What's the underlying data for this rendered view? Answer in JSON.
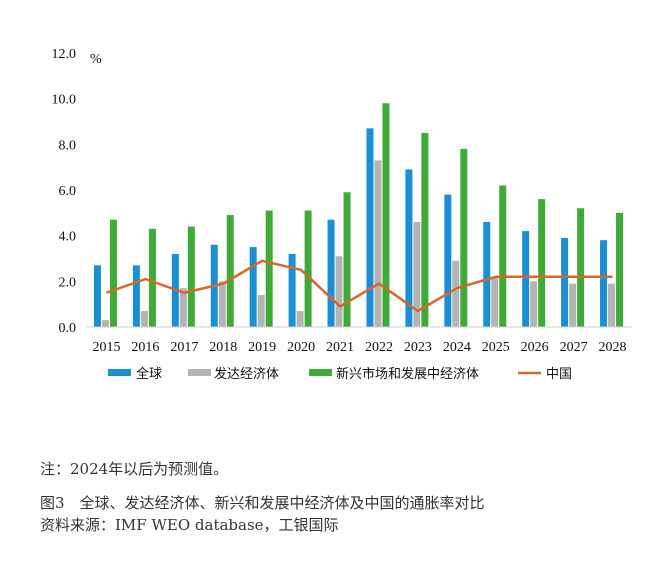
{
  "chart_data": {
    "type": "bar",
    "unit": "%",
    "categories": [
      "2015",
      "2016",
      "2017",
      "2018",
      "2019",
      "2020",
      "2021",
      "2022",
      "2023",
      "2024",
      "2025",
      "2026",
      "2027",
      "2028"
    ],
    "ylim": [
      0,
      12
    ],
    "yticks": [
      "0.0",
      "2.0",
      "4.0",
      "6.0",
      "8.0",
      "10.0",
      "12.0"
    ],
    "series": [
      {
        "name": "全球",
        "kind": "bar",
        "color": "#1a8fd6",
        "values": [
          2.7,
          2.7,
          3.2,
          3.6,
          3.5,
          3.2,
          4.7,
          8.7,
          6.9,
          5.8,
          4.6,
          4.2,
          3.9,
          3.8
        ]
      },
      {
        "name": "发达经济体",
        "kind": "bar",
        "color": "#b4b4b4",
        "values": [
          0.3,
          0.7,
          1.7,
          2.0,
          1.4,
          0.7,
          3.1,
          7.3,
          4.6,
          2.9,
          2.2,
          2.0,
          1.9,
          1.9
        ]
      },
      {
        "name": "新兴市场和发展中经济体",
        "kind": "bar",
        "color": "#3dab35",
        "values": [
          4.7,
          4.3,
          4.4,
          4.9,
          5.1,
          5.1,
          5.9,
          9.8,
          8.5,
          7.8,
          6.2,
          5.6,
          5.2,
          5.0
        ]
      },
      {
        "name": "中国",
        "kind": "line",
        "color": "#d9662a",
        "values": [
          1.5,
          2.1,
          1.5,
          1.9,
          2.9,
          2.5,
          0.9,
          1.9,
          0.7,
          1.7,
          2.2,
          2.2,
          2.2,
          2.2
        ]
      }
    ]
  },
  "captions": {
    "note": "注：2024年以后为预测值。",
    "title": "图3　全球、发达经济体、新兴和发展中经济体及中国的通胀率对比",
    "source": "资料来源：IMF WEO database，工银国际"
  }
}
